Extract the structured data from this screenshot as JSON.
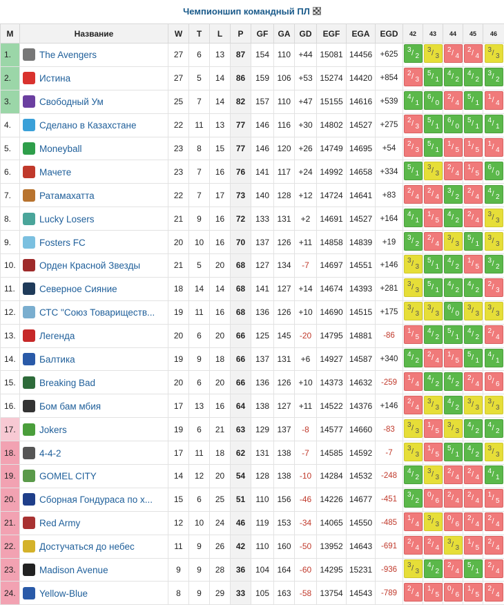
{
  "title": "Чемпионшип командный ПЛ",
  "headers": {
    "pos": "M",
    "name": "Название",
    "w": "W",
    "t": "T",
    "l": "L",
    "p": "P",
    "gf": "GF",
    "ga": "GA",
    "gd": "GD",
    "egf": "EGF",
    "ega": "EGA",
    "egd": "EGD",
    "rounds": [
      "42",
      "43",
      "44",
      "45",
      "46"
    ]
  },
  "rows": [
    {
      "pos": "1.",
      "zone": "green",
      "name": "The Avengers",
      "logo": "#777",
      "w": "27",
      "t": "6",
      "l": "13",
      "p": "87",
      "gf": "154",
      "ga": "110",
      "gd": "+44",
      "egf": "15081",
      "ega": "14456",
      "egd": "+625",
      "res": [
        [
          "3",
          "2",
          "win"
        ],
        [
          "3",
          "3",
          "draw"
        ],
        [
          "2",
          "4",
          "loss"
        ],
        [
          "2",
          "4",
          "loss"
        ],
        [
          "3",
          "3",
          "draw"
        ]
      ]
    },
    {
      "pos": "2.",
      "zone": "green",
      "name": "Истина",
      "logo": "#d9322e",
      "w": "27",
      "t": "5",
      "l": "14",
      "p": "86",
      "gf": "159",
      "ga": "106",
      "gd": "+53",
      "egf": "15274",
      "ega": "14420",
      "egd": "+854",
      "res": [
        [
          "2",
          "3",
          "loss"
        ],
        [
          "5",
          "1",
          "win"
        ],
        [
          "4",
          "2",
          "win"
        ],
        [
          "4",
          "2",
          "win"
        ],
        [
          "3",
          "2",
          "win"
        ]
      ]
    },
    {
      "pos": "3.",
      "zone": "green",
      "name": "Свободный Ум",
      "logo": "#6b3fa0",
      "w": "25",
      "t": "7",
      "l": "14",
      "p": "82",
      "gf": "157",
      "ga": "110",
      "gd": "+47",
      "egf": "15155",
      "ega": "14616",
      "egd": "+539",
      "res": [
        [
          "4",
          "1",
          "win"
        ],
        [
          "6",
          "0",
          "win"
        ],
        [
          "2",
          "4",
          "loss"
        ],
        [
          "5",
          "1",
          "win"
        ],
        [
          "1",
          "4",
          "loss"
        ]
      ]
    },
    {
      "pos": "4.",
      "zone": "",
      "name": "Сделано в Казахстане",
      "logo": "#3aa0d8",
      "w": "22",
      "t": "11",
      "l": "13",
      "p": "77",
      "gf": "146",
      "ga": "116",
      "gd": "+30",
      "egf": "14802",
      "ega": "14527",
      "egd": "+275",
      "res": [
        [
          "2",
          "3",
          "loss"
        ],
        [
          "5",
          "1",
          "win"
        ],
        [
          "6",
          "0",
          "win"
        ],
        [
          "5",
          "1",
          "win"
        ],
        [
          "4",
          "1",
          "win"
        ]
      ]
    },
    {
      "pos": "5.",
      "zone": "",
      "name": "Moneyball",
      "logo": "#2e9e4a",
      "w": "23",
      "t": "8",
      "l": "15",
      "p": "77",
      "gf": "146",
      "ga": "120",
      "gd": "+26",
      "egf": "14749",
      "ega": "14695",
      "egd": "+54",
      "res": [
        [
          "2",
          "3",
          "loss"
        ],
        [
          "5",
          "1",
          "win"
        ],
        [
          "1",
          "5",
          "loss"
        ],
        [
          "1",
          "5",
          "loss"
        ],
        [
          "1",
          "4",
          "loss"
        ]
      ]
    },
    {
      "pos": "6.",
      "zone": "",
      "name": "Мачете",
      "logo": "#c0392b",
      "w": "23",
      "t": "7",
      "l": "16",
      "p": "76",
      "gf": "141",
      "ga": "117",
      "gd": "+24",
      "egf": "14992",
      "ega": "14658",
      "egd": "+334",
      "res": [
        [
          "5",
          "1",
          "win"
        ],
        [
          "3",
          "3",
          "draw"
        ],
        [
          "2",
          "4",
          "loss"
        ],
        [
          "1",
          "5",
          "loss"
        ],
        [
          "6",
          "0",
          "win"
        ]
      ]
    },
    {
      "pos": "7.",
      "zone": "",
      "name": "Ратамахатта",
      "logo": "#b8732e",
      "w": "22",
      "t": "7",
      "l": "17",
      "p": "73",
      "gf": "140",
      "ga": "128",
      "gd": "+12",
      "egf": "14724",
      "ega": "14641",
      "egd": "+83",
      "res": [
        [
          "2",
          "4",
          "loss"
        ],
        [
          "2",
          "4",
          "loss"
        ],
        [
          "3",
          "2",
          "win"
        ],
        [
          "2",
          "4",
          "loss"
        ],
        [
          "4",
          "2",
          "win"
        ]
      ]
    },
    {
      "pos": "8.",
      "zone": "",
      "name": "Lucky Losers",
      "logo": "#4aa59a",
      "w": "21",
      "t": "9",
      "l": "16",
      "p": "72",
      "gf": "133",
      "ga": "131",
      "gd": "+2",
      "egf": "14691",
      "ega": "14527",
      "egd": "+164",
      "res": [
        [
          "4",
          "1",
          "win"
        ],
        [
          "1",
          "5",
          "loss"
        ],
        [
          "4",
          "2",
          "win"
        ],
        [
          "2",
          "4",
          "loss"
        ],
        [
          "3",
          "3",
          "draw"
        ]
      ]
    },
    {
      "pos": "9.",
      "zone": "",
      "name": "Fosters FC",
      "logo": "#7bc0e0",
      "w": "20",
      "t": "10",
      "l": "16",
      "p": "70",
      "gf": "137",
      "ga": "126",
      "gd": "+11",
      "egf": "14858",
      "ega": "14839",
      "egd": "+19",
      "res": [
        [
          "3",
          "2",
          "win"
        ],
        [
          "2",
          "4",
          "loss"
        ],
        [
          "3",
          "3",
          "draw"
        ],
        [
          "5",
          "1",
          "win"
        ],
        [
          "3",
          "3",
          "draw"
        ]
      ]
    },
    {
      "pos": "10.",
      "zone": "",
      "name": "Орден Красной Звезды",
      "logo": "#9e2a2a",
      "w": "21",
      "t": "5",
      "l": "20",
      "p": "68",
      "gf": "127",
      "ga": "134",
      "gd": "-7",
      "egf": "14697",
      "ega": "14551",
      "egd": "+146",
      "res": [
        [
          "3",
          "3",
          "draw"
        ],
        [
          "5",
          "1",
          "win"
        ],
        [
          "4",
          "2",
          "win"
        ],
        [
          "1",
          "5",
          "loss"
        ],
        [
          "3",
          "2",
          "win"
        ]
      ]
    },
    {
      "pos": "11.",
      "zone": "",
      "name": "Северное Сияние",
      "logo": "#1f3b5a",
      "w": "18",
      "t": "14",
      "l": "14",
      "p": "68",
      "gf": "141",
      "ga": "127",
      "gd": "+14",
      "egf": "14674",
      "ega": "14393",
      "egd": "+281",
      "res": [
        [
          "3",
          "3",
          "draw"
        ],
        [
          "5",
          "1",
          "win"
        ],
        [
          "4",
          "2",
          "win"
        ],
        [
          "4",
          "2",
          "win"
        ],
        [
          "2",
          "3",
          "loss"
        ]
      ]
    },
    {
      "pos": "12.",
      "zone": "",
      "name": "СТС \"Союз Товариществ...",
      "logo": "#7aaecf",
      "w": "19",
      "t": "11",
      "l": "16",
      "p": "68",
      "gf": "136",
      "ga": "126",
      "gd": "+10",
      "egf": "14690",
      "ega": "14515",
      "egd": "+175",
      "res": [
        [
          "3",
          "3",
          "draw"
        ],
        [
          "3",
          "3",
          "draw"
        ],
        [
          "6",
          "0",
          "win"
        ],
        [
          "3",
          "3",
          "draw"
        ],
        [
          "3",
          "3",
          "draw"
        ]
      ]
    },
    {
      "pos": "13.",
      "zone": "",
      "name": "Легенда",
      "logo": "#c62828",
      "w": "20",
      "t": "6",
      "l": "20",
      "p": "66",
      "gf": "125",
      "ga": "145",
      "gd": "-20",
      "egf": "14795",
      "ega": "14881",
      "egd": "-86",
      "res": [
        [
          "1",
          "5",
          "loss"
        ],
        [
          "4",
          "2",
          "win"
        ],
        [
          "5",
          "1",
          "win"
        ],
        [
          "4",
          "2",
          "win"
        ],
        [
          "2",
          "4",
          "loss"
        ]
      ]
    },
    {
      "pos": "14.",
      "zone": "",
      "name": "Балтика",
      "logo": "#2a5aa8",
      "w": "19",
      "t": "9",
      "l": "18",
      "p": "66",
      "gf": "137",
      "ga": "131",
      "gd": "+6",
      "egf": "14927",
      "ega": "14587",
      "egd": "+340",
      "res": [
        [
          "4",
          "2",
          "win"
        ],
        [
          "2",
          "4",
          "loss"
        ],
        [
          "1",
          "5",
          "loss"
        ],
        [
          "5",
          "1",
          "win"
        ],
        [
          "4",
          "1",
          "win"
        ]
      ]
    },
    {
      "pos": "15.",
      "zone": "",
      "name": "Breaking Bad",
      "logo": "#2e6b3a",
      "w": "20",
      "t": "6",
      "l": "20",
      "p": "66",
      "gf": "136",
      "ga": "126",
      "gd": "+10",
      "egf": "14373",
      "ega": "14632",
      "egd": "-259",
      "res": [
        [
          "1",
          "4",
          "loss"
        ],
        [
          "4",
          "2",
          "win"
        ],
        [
          "4",
          "2",
          "win"
        ],
        [
          "2",
          "4",
          "loss"
        ],
        [
          "0",
          "6",
          "loss"
        ]
      ]
    },
    {
      "pos": "16.",
      "zone": "",
      "name": "Бом бам мбия",
      "logo": "#333",
      "w": "17",
      "t": "13",
      "l": "16",
      "p": "64",
      "gf": "138",
      "ga": "127",
      "gd": "+11",
      "egf": "14522",
      "ega": "14376",
      "egd": "+146",
      "res": [
        [
          "2",
          "4",
          "loss"
        ],
        [
          "3",
          "3",
          "draw"
        ],
        [
          "4",
          "2",
          "win"
        ],
        [
          "3",
          "3",
          "draw"
        ],
        [
          "3",
          "3",
          "draw"
        ]
      ]
    },
    {
      "pos": "17.",
      "zone": "pink",
      "name": "Jokers",
      "logo": "#4a9e3b",
      "w": "19",
      "t": "6",
      "l": "21",
      "p": "63",
      "gf": "129",
      "ga": "137",
      "gd": "-8",
      "egf": "14577",
      "ega": "14660",
      "egd": "-83",
      "res": [
        [
          "3",
          "3",
          "draw"
        ],
        [
          "1",
          "5",
          "loss"
        ],
        [
          "3",
          "3",
          "draw"
        ],
        [
          "4",
          "2",
          "win"
        ],
        [
          "4",
          "2",
          "win"
        ]
      ]
    },
    {
      "pos": "18.",
      "zone": "red",
      "name": "4-4-2",
      "logo": "#555",
      "w": "17",
      "t": "11",
      "l": "18",
      "p": "62",
      "gf": "131",
      "ga": "138",
      "gd": "-7",
      "egf": "14585",
      "ega": "14592",
      "egd": "-7",
      "res": [
        [
          "3",
          "3",
          "draw"
        ],
        [
          "1",
          "5",
          "loss"
        ],
        [
          "5",
          "1",
          "win"
        ],
        [
          "4",
          "2",
          "win"
        ],
        [
          "3",
          "3",
          "draw"
        ]
      ]
    },
    {
      "pos": "19.",
      "zone": "red",
      "name": "GOMEL CITY",
      "logo": "#5a9a4a",
      "w": "14",
      "t": "12",
      "l": "20",
      "p": "54",
      "gf": "128",
      "ga": "138",
      "gd": "-10",
      "egf": "14284",
      "ega": "14532",
      "egd": "-248",
      "res": [
        [
          "4",
          "2",
          "win"
        ],
        [
          "3",
          "3",
          "draw"
        ],
        [
          "2",
          "4",
          "loss"
        ],
        [
          "2",
          "4",
          "loss"
        ],
        [
          "4",
          "1",
          "win"
        ]
      ]
    },
    {
      "pos": "20.",
      "zone": "red",
      "name": "Сборная Гондураса по х...",
      "logo": "#1f3f8a",
      "w": "15",
      "t": "6",
      "l": "25",
      "p": "51",
      "gf": "110",
      "ga": "156",
      "gd": "-46",
      "egf": "14226",
      "ega": "14677",
      "egd": "-451",
      "res": [
        [
          "3",
          "2",
          "win"
        ],
        [
          "0",
          "6",
          "loss"
        ],
        [
          "2",
          "4",
          "loss"
        ],
        [
          "2",
          "4",
          "loss"
        ],
        [
          "1",
          "5",
          "loss"
        ]
      ]
    },
    {
      "pos": "21.",
      "zone": "red",
      "name": "Red Army",
      "logo": "#a83232",
      "w": "12",
      "t": "10",
      "l": "24",
      "p": "46",
      "gf": "119",
      "ga": "153",
      "gd": "-34",
      "egf": "14065",
      "ega": "14550",
      "egd": "-485",
      "res": [
        [
          "1",
          "4",
          "loss"
        ],
        [
          "3",
          "3",
          "draw"
        ],
        [
          "0",
          "6",
          "loss"
        ],
        [
          "2",
          "4",
          "loss"
        ],
        [
          "2",
          "4",
          "loss"
        ]
      ]
    },
    {
      "pos": "22.",
      "zone": "red",
      "name": "Достучаться до небес",
      "logo": "#d4b22a",
      "w": "11",
      "t": "9",
      "l": "26",
      "p": "42",
      "gf": "110",
      "ga": "160",
      "gd": "-50",
      "egf": "13952",
      "ega": "14643",
      "egd": "-691",
      "res": [
        [
          "2",
          "4",
          "loss"
        ],
        [
          "2",
          "4",
          "loss"
        ],
        [
          "3",
          "3",
          "draw"
        ],
        [
          "1",
          "5",
          "loss"
        ],
        [
          "2",
          "4",
          "loss"
        ]
      ]
    },
    {
      "pos": "23.",
      "zone": "red",
      "name": "Madison Avenue",
      "logo": "#222",
      "w": "9",
      "t": "9",
      "l": "28",
      "p": "36",
      "gf": "104",
      "ga": "164",
      "gd": "-60",
      "egf": "14295",
      "ega": "15231",
      "egd": "-936",
      "res": [
        [
          "3",
          "3",
          "draw"
        ],
        [
          "4",
          "2",
          "win"
        ],
        [
          "2",
          "4",
          "loss"
        ],
        [
          "5",
          "1",
          "win"
        ],
        [
          "2",
          "4",
          "loss"
        ]
      ]
    },
    {
      "pos": "24.",
      "zone": "red",
      "name": "Yellow-Blue",
      "logo": "#2a5aa8",
      "w": "8",
      "t": "9",
      "l": "29",
      "p": "33",
      "gf": "105",
      "ga": "163",
      "gd": "-58",
      "egf": "13754",
      "ega": "14543",
      "egd": "-789",
      "res": [
        [
          "2",
          "4",
          "loss"
        ],
        [
          "1",
          "5",
          "loss"
        ],
        [
          "0",
          "6",
          "loss"
        ],
        [
          "1",
          "5",
          "loss"
        ],
        [
          "2",
          "4",
          "loss"
        ]
      ]
    }
  ]
}
